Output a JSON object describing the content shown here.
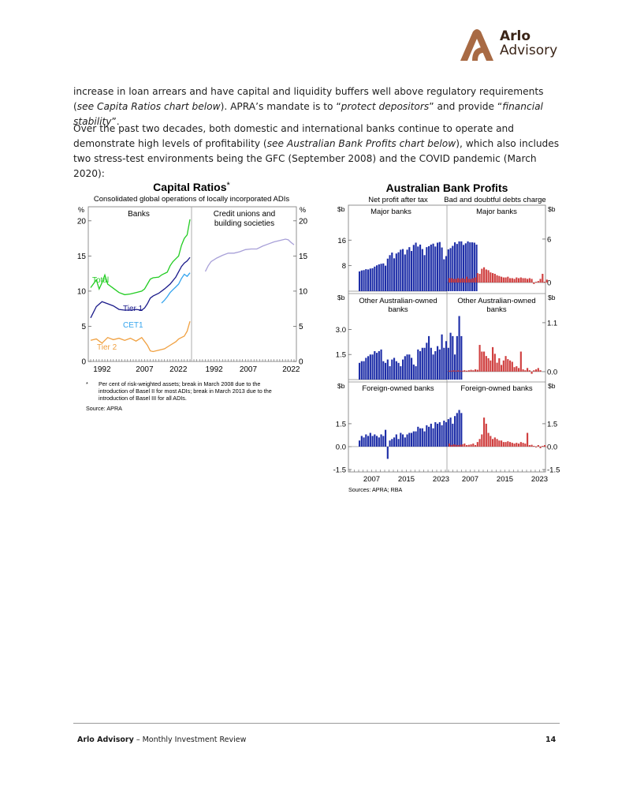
{
  "brand": {
    "name_line1": "Arlo",
    "name_line2": "Advisory",
    "logo_color": "#a86a44"
  },
  "paragraphs": [
    [
      {
        "t": "increase in loan arrears and have capital and liquidity buffers well above regulatory requirements (",
        "i": false
      },
      {
        "t": "see Capita Ratios chart below",
        "i": true
      },
      {
        "t": "). APRA’s mandate is to “",
        "i": false
      },
      {
        "t": "protect depositors",
        "i": true
      },
      {
        "t": "” and provide “",
        "i": false
      },
      {
        "t": "financial stability",
        "i": true
      },
      {
        "t": "”.",
        "i": false
      }
    ],
    [
      {
        "t": "Over the past two decades, both domestic and international banks continue to operate and demonstrate high levels of profitability (",
        "i": false
      },
      {
        "t": "see Australian Bank Profits chart below",
        "i": true
      },
      {
        "t": "), which also  includes two stress-test environments being the GFC (September 2008) and the COVID pandemic (March 2020):",
        "i": false
      }
    ]
  ],
  "chart_data": [
    {
      "type": "line",
      "title": "Capital Ratios",
      "title_mark": "*",
      "subtitle": "Consolidated global operations of locally incorporated ADIs",
      "ylabel_left": "%",
      "ylabel_right": "%",
      "ylim": [
        0,
        22
      ],
      "yticks": [
        0,
        5,
        10,
        15,
        20
      ],
      "panels": [
        {
          "title": "Banks",
          "x_ticks": [
            "1992",
            "2007",
            "2022"
          ],
          "xlim": [
            1988,
            2023
          ]
        },
        {
          "title_lines": [
            "Credit unions and",
            "building societies"
          ],
          "x_ticks": [
            "1992",
            "2007",
            "2022"
          ],
          "xlim": [
            1988,
            2023
          ]
        }
      ],
      "series": [
        {
          "name": "Total",
          "color": "#22cc22",
          "panel": 0,
          "x": [
            1988,
            1990,
            1991,
            1992,
            1993,
            1994,
            1996,
            1998,
            2000,
            2002,
            2004,
            2006,
            2007,
            2008,
            2009,
            2010,
            2012,
            2013,
            2014,
            2015,
            2016,
            2017,
            2018,
            2019,
            2020,
            2021,
            2022,
            2023
          ],
          "y": [
            10.5,
            11.6,
            10.3,
            11.2,
            12.3,
            11.0,
            10.4,
            9.8,
            9.5,
            9.6,
            9.8,
            10.0,
            10.3,
            11.0,
            11.7,
            11.9,
            12.0,
            12.3,
            12.5,
            12.7,
            13.6,
            14.2,
            14.6,
            15.0,
            16.5,
            17.5,
            18.0,
            20.2
          ]
        },
        {
          "name": "Tier 1",
          "color": "#1a1a8a",
          "panel": 0,
          "x": [
            1988,
            1990,
            1992,
            1994,
            1996,
            1998,
            2000,
            2002,
            2004,
            2006,
            2007,
            2008,
            2009,
            2010,
            2012,
            2014,
            2016,
            2018,
            2020,
            2021,
            2022,
            2023
          ],
          "y": [
            6.2,
            7.8,
            8.5,
            8.2,
            7.9,
            7.4,
            7.3,
            7.3,
            7.4,
            7.3,
            7.6,
            8.2,
            9.0,
            9.3,
            9.7,
            10.3,
            11.0,
            12.0,
            13.5,
            14.0,
            14.3,
            14.8
          ]
        },
        {
          "name": "CET1",
          "color": "#33a4ee",
          "panel": 0,
          "x": [
            2013,
            2014,
            2015,
            2016,
            2017,
            2018,
            2019,
            2020,
            2021,
            2022,
            2023
          ],
          "y": [
            8.3,
            8.7,
            9.2,
            9.8,
            10.2,
            10.6,
            11.0,
            11.8,
            12.4,
            12.1,
            12.6
          ]
        },
        {
          "name": "Tier 2",
          "color": "#f0a040",
          "panel": 0,
          "x": [
            1988,
            1990,
            1992,
            1994,
            1996,
            1998,
            2000,
            2002,
            2004,
            2006,
            2008,
            2009,
            2010,
            2012,
            2014,
            2016,
            2018,
            2019,
            2020,
            2021,
            2022,
            2023
          ],
          "y": [
            3.0,
            3.2,
            2.6,
            3.4,
            3.1,
            3.3,
            3.0,
            3.3,
            2.9,
            3.4,
            2.3,
            1.5,
            1.4,
            1.6,
            1.8,
            2.3,
            2.8,
            3.2,
            3.4,
            3.6,
            4.3,
            5.7
          ]
        },
        {
          "name": "",
          "color": "#a8a0d8",
          "panel": 1,
          "x": [
            1992,
            1993,
            1994,
            1996,
            1998,
            2000,
            2002,
            2004,
            2006,
            2008,
            2010,
            2012,
            2014,
            2016,
            2018,
            2020,
            2021,
            2022,
            2023
          ],
          "y": [
            12.8,
            13.6,
            14.2,
            14.7,
            15.1,
            15.4,
            15.4,
            15.6,
            15.9,
            16.0,
            16.0,
            16.4,
            16.7,
            17.0,
            17.2,
            17.4,
            17.3,
            16.9,
            16.6
          ]
        }
      ],
      "labels": {
        "total": "Total",
        "tier1": "Tier 1",
        "cet1": "CET1",
        "tier2": "Tier 2"
      },
      "footnote_mark": "*",
      "footnote_lines": [
        "Per cent of risk-weighted assets; break in March 2008 due to the",
        "introduction of Basel II for most ADIs; break in March 2013 due to the",
        "introduction of Basel III for all ADIs."
      ],
      "source": "Source:   APRA"
    },
    {
      "type": "bar",
      "title": "Australian Bank Profits",
      "column_titles": [
        "Net profit after tax",
        "Bad and doubtful debts charge"
      ],
      "unit": "$b",
      "xlim": [
        2002,
        2024
      ],
      "x_ticks": [
        "2007",
        "2015",
        "2023"
      ],
      "colors": {
        "profit": "#1f2fa8",
        "charge": "#d04040"
      },
      "panels": [
        {
          "title": "Major banks",
          "left_ticks": [
            "16",
            "8"
          ],
          "left_vals": [
            16,
            8
          ],
          "left_ylim": [
            0,
            22
          ],
          "right_ticks": [
            "6",
            "0"
          ],
          "right_vals": [
            6,
            0
          ],
          "right_ylim": [
            -1.2,
            8.5
          ],
          "profit": [
            6.2,
            6.5,
            6.6,
            6.9,
            6.8,
            7.1,
            7.2,
            7.7,
            8.1,
            8.4,
            8.6,
            8.7,
            8.0,
            10.2,
            11.3,
            12.1,
            10.3,
            11.8,
            12.2,
            13.0,
            13.2,
            11.5,
            13.0,
            13.8,
            12.6,
            14.5,
            15.2,
            14.0,
            14.6,
            13.2,
            11.3,
            13.8,
            14.1,
            14.6,
            14.9,
            14.0,
            15.2,
            15.4,
            13.7,
            10.0,
            11.0,
            13.1,
            13.5,
            14.2,
            15.3,
            14.8,
            15.6,
            15.6,
            14.5,
            15.0,
            15.6,
            15.3,
            15.3,
            15.2,
            14.6
          ],
          "charge": [
            0.6,
            0.6,
            0.5,
            0.5,
            0.6,
            0.5,
            0.6,
            0.5,
            0.8,
            0.5,
            0.5,
            0.6,
            0.7,
            1.3,
            1.2,
            1.9,
            2.1,
            1.8,
            1.7,
            1.4,
            1.3,
            1.2,
            1.0,
            0.9,
            0.8,
            0.7,
            0.7,
            0.8,
            0.6,
            0.6,
            0.5,
            0.7,
            0.6,
            0.7,
            0.6,
            0.6,
            0.5,
            0.6,
            0.5,
            -0.2,
            0.1,
            0.2,
            0.5,
            1.2,
            0.1,
            0.4
          ]
        },
        {
          "title_lines": [
            "Other Australian-owned",
            "banks"
          ],
          "left_ticks": [
            "3.0",
            "1.5"
          ],
          "left_vals": [
            3.0,
            1.5
          ],
          "left_ylim": [
            0,
            4.2
          ],
          "right_ticks": [
            "1.1",
            "0.0"
          ],
          "right_vals": [
            1.1,
            0.0
          ],
          "right_ylim": [
            -0.18,
            1.4
          ],
          "profit": [
            1.0,
            1.1,
            1.1,
            1.3,
            1.4,
            1.5,
            1.5,
            1.7,
            1.6,
            1.7,
            1.8,
            1.1,
            1.0,
            1.2,
            0.8,
            1.2,
            1.3,
            1.1,
            1.0,
            0.8,
            1.2,
            1.4,
            1.5,
            1.5,
            1.3,
            0.9,
            0.8,
            1.8,
            1.7,
            1.9,
            1.9,
            2.2,
            2.6,
            1.9,
            1.5,
            1.7,
            2.0,
            1.8,
            2.7,
            1.9,
            2.3,
            1.9,
            2.8,
            2.6,
            1.5,
            2.6,
            3.8,
            2.6
          ],
          "charge": [
            0.02,
            0.02,
            0.03,
            0.02,
            0.03,
            0.02,
            0.02,
            0.03,
            0.02,
            0.03,
            0.04,
            0.03,
            0.05,
            0.04,
            0.6,
            0.45,
            0.45,
            0.35,
            0.3,
            0.25,
            0.55,
            0.4,
            0.2,
            0.3,
            0.15,
            0.25,
            0.35,
            0.28,
            0.25,
            0.22,
            0.1,
            0.12,
            0.08,
            0.45,
            0.05,
            0.03,
            0.08,
            0.03,
            -0.05,
            0.03,
            0.05,
            0.08,
            0.03
          ]
        },
        {
          "title": "Foreign-owned banks",
          "left_ticks": [
            "1.5",
            "0.0",
            "-1.5"
          ],
          "left_vals": [
            1.5,
            0.0,
            -1.5
          ],
          "left_ylim": [
            -1.5,
            3.2
          ],
          "right_ticks": [
            "1.5",
            "0.0",
            "-1.5"
          ],
          "right_vals": [
            1.5,
            0.0,
            -1.5
          ],
          "right_ylim": [
            -1.5,
            3.2
          ],
          "profit": [
            0.4,
            0.7,
            0.6,
            0.8,
            0.7,
            0.9,
            0.7,
            0.8,
            0.7,
            0.6,
            0.8,
            0.7,
            1.1,
            -0.8,
            0.4,
            0.5,
            0.6,
            0.8,
            0.5,
            0.9,
            0.8,
            0.6,
            0.8,
            0.9,
            0.9,
            1.0,
            1.0,
            1.3,
            1.2,
            1.2,
            1.0,
            1.4,
            1.3,
            1.5,
            1.2,
            1.6,
            1.5,
            1.6,
            1.4,
            1.7,
            1.6,
            1.8,
            1.9,
            1.5,
            2.0,
            2.2,
            2.4,
            2.2
          ],
          "charge": [
            0.2,
            0.1,
            0.15,
            0.12,
            0.1,
            0.12,
            0.15,
            0.2,
            0.1,
            0.12,
            0.15,
            0.2,
            0.1,
            0.3,
            0.5,
            0.8,
            1.9,
            1.5,
            0.9,
            0.7,
            0.5,
            0.6,
            0.5,
            0.4,
            0.4,
            0.3,
            0.3,
            0.35,
            0.3,
            0.25,
            0.2,
            0.25,
            0.2,
            0.3,
            0.25,
            0.2,
            0.9,
            0.1,
            0.12,
            0.05,
            -0.05,
            0.1,
            -0.1,
            0.05,
            0.1,
            0.0
          ]
        }
      ],
      "source": "Sources: APRA; RBA"
    }
  ],
  "footer": {
    "brand": "Arlo Advisory",
    "separator": " – Monthly Investment Review",
    "page": "14"
  }
}
